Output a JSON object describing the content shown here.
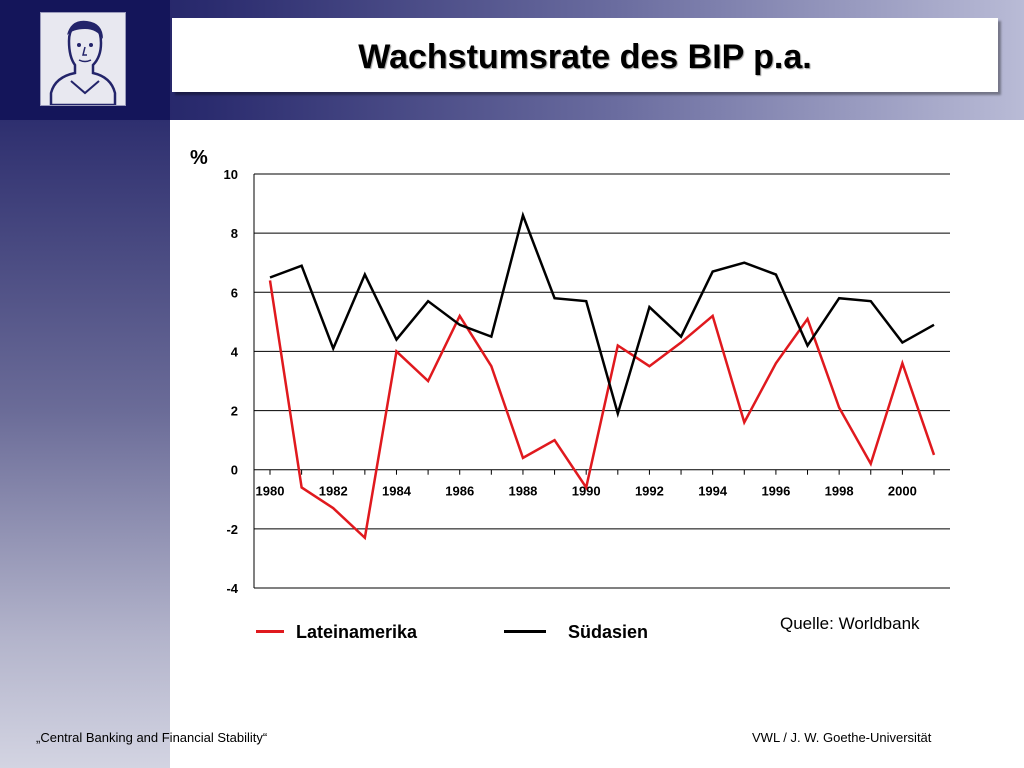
{
  "slide": {
    "title": "Wachstumsrate des BIP p.a.",
    "source": "Quelle: Worldbank",
    "footer_left": "„Central Banking and Financial Stability“",
    "footer_right": "VWL / J. W. Goethe-Universität",
    "logo_icon": "goethe-portrait-icon",
    "colors": {
      "band_dark": "#1b1c5e",
      "band_light": "#b9bbd6"
    }
  },
  "chart_data": {
    "type": "line",
    "title": "",
    "ylabel": "%",
    "xlabel": "",
    "ylim": [
      -4,
      10
    ],
    "yticks": [
      -4,
      -2,
      0,
      2,
      4,
      6,
      8,
      10
    ],
    "xlim": [
      1980,
      2001
    ],
    "xticks": [
      1980,
      1982,
      1984,
      1986,
      1988,
      1990,
      1992,
      1994,
      1996,
      1998,
      2000
    ],
    "grid": true,
    "legend_position": "bottom",
    "x": [
      1980,
      1981,
      1982,
      1983,
      1984,
      1985,
      1986,
      1987,
      1988,
      1989,
      1990,
      1991,
      1992,
      1993,
      1994,
      1995,
      1996,
      1997,
      1998,
      1999,
      2000,
      2001
    ],
    "series": [
      {
        "name": "Lateinamerika",
        "color": "#e0191e",
        "values": [
          6.4,
          -0.6,
          -1.3,
          -2.3,
          4.0,
          3.0,
          5.2,
          3.5,
          0.4,
          1.0,
          -0.6,
          4.2,
          3.5,
          4.3,
          5.2,
          1.6,
          3.6,
          5.1,
          2.1,
          0.2,
          3.6,
          0.5
        ]
      },
      {
        "name": "Südasien",
        "color": "#000000",
        "values": [
          6.5,
          6.9,
          4.1,
          6.6,
          4.4,
          5.7,
          4.9,
          4.5,
          8.6,
          5.8,
          5.7,
          1.9,
          5.5,
          4.5,
          6.7,
          7.0,
          6.6,
          4.2,
          5.8,
          5.7,
          4.3,
          4.9
        ]
      }
    ]
  }
}
